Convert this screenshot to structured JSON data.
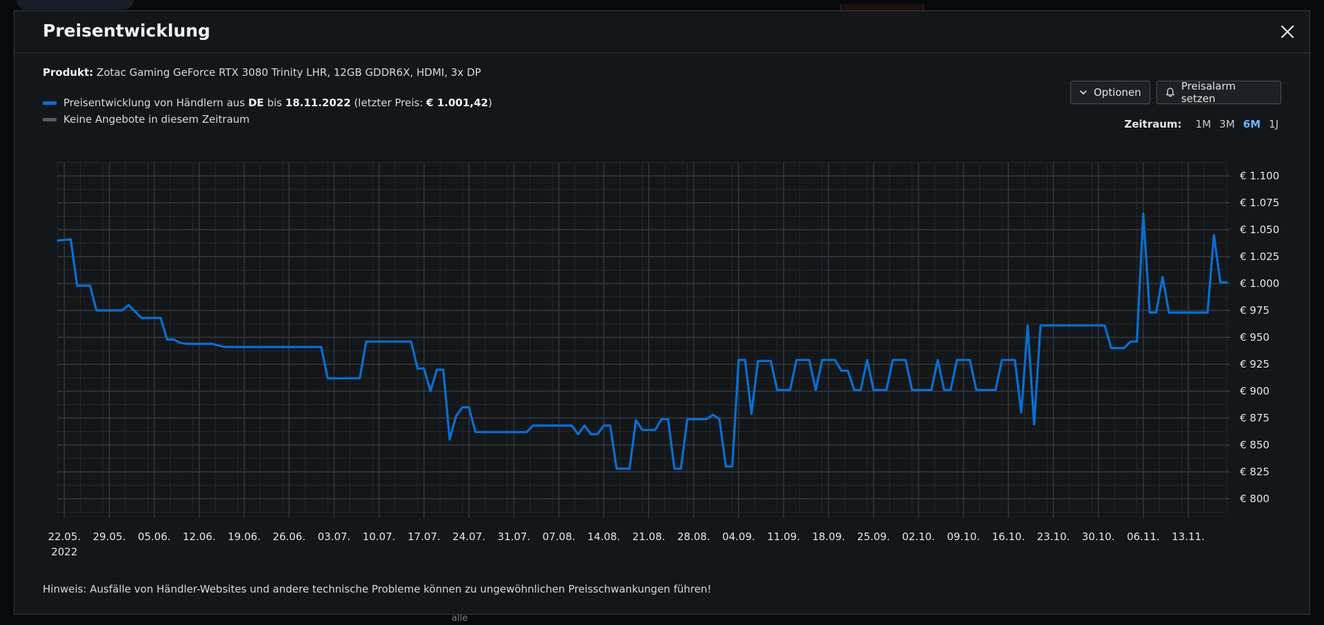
{
  "background": {
    "bottom_text": "alle"
  },
  "modal": {
    "title": "Preisentwicklung",
    "close_icon": "close-icon"
  },
  "product": {
    "label": "Produkt:",
    "name": "Zotac Gaming GeForce RTX 3080 Trinity LHR, 12GB GDDR6X, HDMI, 3x DP"
  },
  "legend": {
    "series_text_1": "Preisentwicklung von Händlern aus",
    "series_country": "DE",
    "series_text_2": "bis",
    "series_date": "18.11.2022",
    "series_text_3": "(letzter Preis:",
    "series_last_price": "€ 1.001,42",
    "series_text_4": ")",
    "no_offers": "Keine Angebote in diesem Zeitraum",
    "series_color": "#0a6fd1",
    "no_offers_color": "#555b61"
  },
  "buttons": {
    "options": "Optionen",
    "options_icon": "chevron-down-icon",
    "alarm": "Preisalarm setzen",
    "alarm_icon": "bell-icon"
  },
  "range": {
    "label": "Zeitraum:",
    "options": [
      "1M",
      "3M",
      "6M",
      "1J"
    ],
    "active": "6M",
    "active_color": "#6fb6ff"
  },
  "hint": "Hinweis: Ausfälle von Händler-Websites und andere technische Probleme können zu ungewöhnlichen Preisschwankungen führen!",
  "chart_data": {
    "type": "line",
    "y_unit": "€",
    "ylim": [
      800,
      1100
    ],
    "y_ticks": [
      800,
      825,
      850,
      875,
      900,
      925,
      950,
      975,
      1000,
      1025,
      1050,
      1075,
      1100
    ],
    "y_tick_labels": [
      "€ 800",
      "€ 825",
      "€ 850",
      "€ 875",
      "€ 900",
      "€ 925",
      "€ 950",
      "€ 975",
      "€ 1.000",
      "€ 1.025",
      "€ 1.050",
      "€ 1.075",
      "€ 1.100"
    ],
    "x_tick_labels": [
      "22.05.",
      "29.05.",
      "05.06.",
      "12.06.",
      "19.06.",
      "26.06.",
      "03.07.",
      "10.07.",
      "17.07.",
      "24.07.",
      "31.07.",
      "07.08.",
      "14.08.",
      "21.08.",
      "28.08.",
      "04.09.",
      "11.09.",
      "18.09.",
      "25.09.",
      "02.10.",
      "09.10.",
      "16.10.",
      "23.10.",
      "30.10.",
      "06.11.",
      "13.11."
    ],
    "x_year_label": "2022",
    "grid": true,
    "series": [
      {
        "color": "#0a6fd1",
        "points": [
          [
            "2022-05-21",
            1040
          ],
          [
            "2022-05-23",
            1041
          ],
          [
            "2022-05-24",
            998
          ],
          [
            "2022-05-26",
            998
          ],
          [
            "2022-05-27",
            975
          ],
          [
            "2022-05-31",
            975
          ],
          [
            "2022-06-01",
            980
          ],
          [
            "2022-06-03",
            968
          ],
          [
            "2022-06-06",
            968
          ],
          [
            "2022-06-07",
            948
          ],
          [
            "2022-06-08",
            948
          ],
          [
            "2022-06-09",
            945
          ],
          [
            "2022-06-10",
            944
          ],
          [
            "2022-06-14",
            944
          ],
          [
            "2022-06-16",
            941
          ],
          [
            "2022-07-01",
            941
          ],
          [
            "2022-07-02",
            912
          ],
          [
            "2022-07-07",
            912
          ],
          [
            "2022-07-08",
            946
          ],
          [
            "2022-07-15",
            946
          ],
          [
            "2022-07-16",
            921
          ],
          [
            "2022-07-17",
            921
          ],
          [
            "2022-07-18",
            900
          ],
          [
            "2022-07-19",
            920
          ],
          [
            "2022-07-20",
            920
          ],
          [
            "2022-07-21",
            855
          ],
          [
            "2022-07-22",
            877
          ],
          [
            "2022-07-23",
            885
          ],
          [
            "2022-07-24",
            885
          ],
          [
            "2022-07-25",
            862
          ],
          [
            "2022-08-02",
            862
          ],
          [
            "2022-08-03",
            868
          ],
          [
            "2022-08-09",
            868
          ],
          [
            "2022-08-10",
            860
          ],
          [
            "2022-08-11",
            868
          ],
          [
            "2022-08-12",
            860
          ],
          [
            "2022-08-13",
            860
          ],
          [
            "2022-08-14",
            868
          ],
          [
            "2022-08-15",
            868
          ],
          [
            "2022-08-16",
            828
          ],
          [
            "2022-08-18",
            828
          ],
          [
            "2022-08-19",
            873
          ],
          [
            "2022-08-20",
            864
          ],
          [
            "2022-08-22",
            864
          ],
          [
            "2022-08-23",
            874
          ],
          [
            "2022-08-24",
            874
          ],
          [
            "2022-08-25",
            828
          ],
          [
            "2022-08-26",
            828
          ],
          [
            "2022-08-27",
            874
          ],
          [
            "2022-08-30",
            874
          ],
          [
            "2022-08-31",
            878
          ],
          [
            "2022-09-01",
            874
          ],
          [
            "2022-09-02",
            830
          ],
          [
            "2022-09-03",
            830
          ],
          [
            "2022-09-04",
            929
          ],
          [
            "2022-09-05",
            929
          ],
          [
            "2022-09-06",
            879
          ],
          [
            "2022-09-07",
            928
          ],
          [
            "2022-09-09",
            928
          ],
          [
            "2022-09-10",
            901
          ],
          [
            "2022-09-12",
            901
          ],
          [
            "2022-09-13",
            929
          ],
          [
            "2022-09-15",
            929
          ],
          [
            "2022-09-16",
            901
          ],
          [
            "2022-09-17",
            929
          ],
          [
            "2022-09-19",
            929
          ],
          [
            "2022-09-20",
            919
          ],
          [
            "2022-09-21",
            919
          ],
          [
            "2022-09-22",
            901
          ],
          [
            "2022-09-23",
            901
          ],
          [
            "2022-09-24",
            929
          ],
          [
            "2022-09-25",
            901
          ],
          [
            "2022-09-27",
            901
          ],
          [
            "2022-09-28",
            929
          ],
          [
            "2022-09-30",
            929
          ],
          [
            "2022-10-01",
            901
          ],
          [
            "2022-10-04",
            901
          ],
          [
            "2022-10-05",
            929
          ],
          [
            "2022-10-06",
            901
          ],
          [
            "2022-10-07",
            901
          ],
          [
            "2022-10-08",
            929
          ],
          [
            "2022-10-10",
            929
          ],
          [
            "2022-10-11",
            901
          ],
          [
            "2022-10-14",
            901
          ],
          [
            "2022-10-15",
            929
          ],
          [
            "2022-10-17",
            929
          ],
          [
            "2022-10-18",
            880
          ],
          [
            "2022-10-19",
            961
          ],
          [
            "2022-10-20",
            869
          ],
          [
            "2022-10-21",
            961
          ],
          [
            "2022-10-31",
            961
          ],
          [
            "2022-11-01",
            940
          ],
          [
            "2022-11-03",
            940
          ],
          [
            "2022-11-04",
            946
          ],
          [
            "2022-11-05",
            946
          ],
          [
            "2022-11-06",
            1065
          ],
          [
            "2022-11-07",
            973
          ],
          [
            "2022-11-08",
            973
          ],
          [
            "2022-11-09",
            1006
          ],
          [
            "2022-11-10",
            973
          ],
          [
            "2022-11-16",
            973
          ],
          [
            "2022-11-17",
            1045
          ],
          [
            "2022-11-18",
            1001
          ],
          [
            "2022-11-19",
            1001
          ]
        ]
      }
    ]
  }
}
